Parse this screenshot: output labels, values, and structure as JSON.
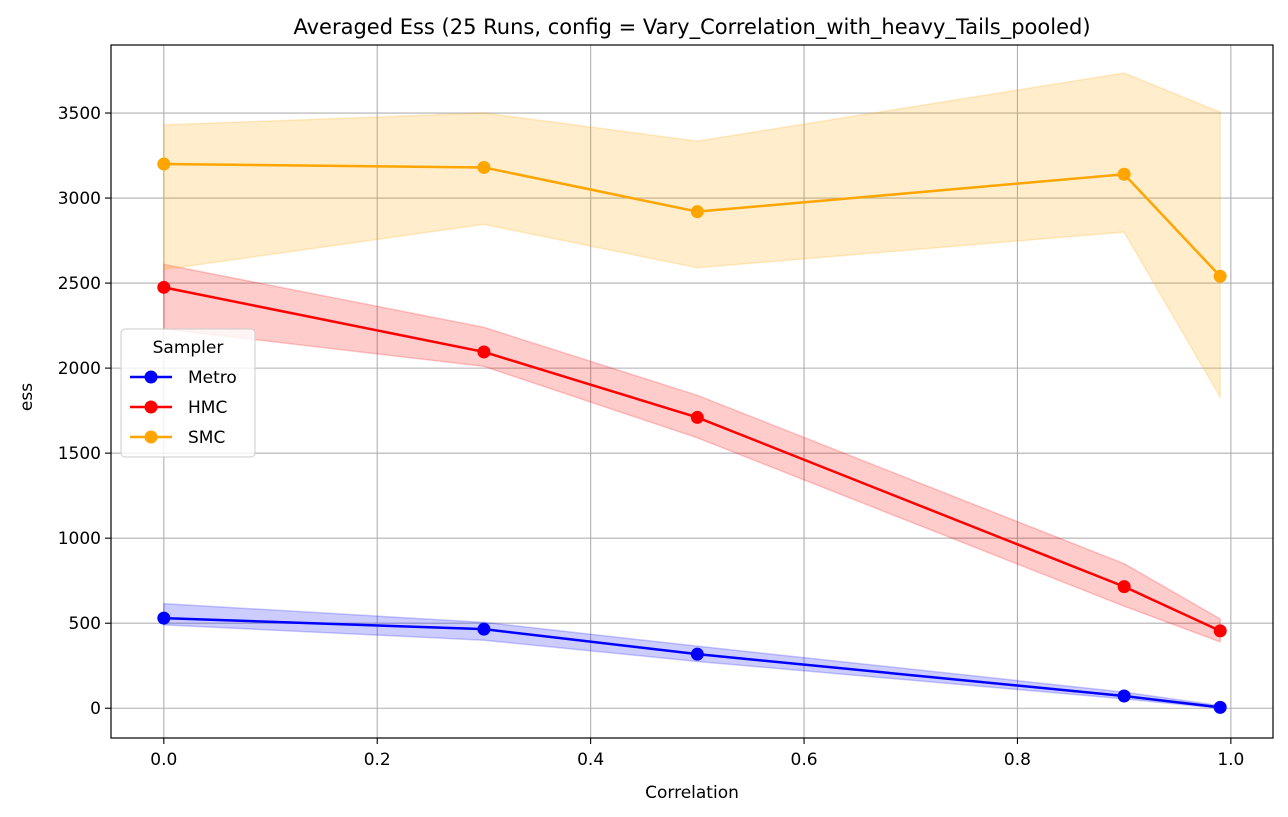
{
  "chart_data": {
    "type": "line",
    "title": "Averaged Ess (25 Runs, config = Vary_Correlation_with_heavy_Tails_pooled)",
    "xlabel": "Correlation",
    "ylabel": "ess",
    "xlim": [
      -0.0495,
      1.0395
    ],
    "ylim": [
      -175,
      3900
    ],
    "xticks": [
      0.0,
      0.2,
      0.4,
      0.6,
      0.8,
      1.0
    ],
    "xtick_labels": [
      "0.0",
      "0.2",
      "0.4",
      "0.6",
      "0.8",
      "1.0"
    ],
    "yticks": [
      0,
      500,
      1000,
      1500,
      2000,
      2500,
      3000,
      3500
    ],
    "ytick_labels": [
      "0",
      "500",
      "1000",
      "1500",
      "2000",
      "2500",
      "3000",
      "3500"
    ],
    "grid": true,
    "legend": {
      "title": "Sampler",
      "position": "center-left"
    },
    "x": [
      0.0,
      0.3,
      0.5,
      0.9,
      0.99
    ],
    "series": [
      {
        "name": "Metro",
        "color": "#0000ff",
        "values": [
          530,
          465,
          318,
          72,
          5
        ],
        "band_lower": [
          490,
          400,
          275,
          55,
          0
        ],
        "band_upper": [
          615,
          505,
          365,
          95,
          15
        ]
      },
      {
        "name": "HMC",
        "color": "#ff0000",
        "values": [
          2475,
          2095,
          1710,
          715,
          455
        ],
        "band_lower": [
          2230,
          2010,
          1590,
          600,
          390
        ],
        "band_upper": [
          2610,
          2240,
          1840,
          850,
          525
        ]
      },
      {
        "name": "SMC",
        "color": "#ffa500",
        "values": [
          3200,
          3180,
          2920,
          3140,
          2540
        ],
        "band_lower": [
          2580,
          2845,
          2590,
          2800,
          1830
        ],
        "band_upper": [
          3430,
          3500,
          3335,
          3735,
          3505
        ]
      }
    ]
  }
}
